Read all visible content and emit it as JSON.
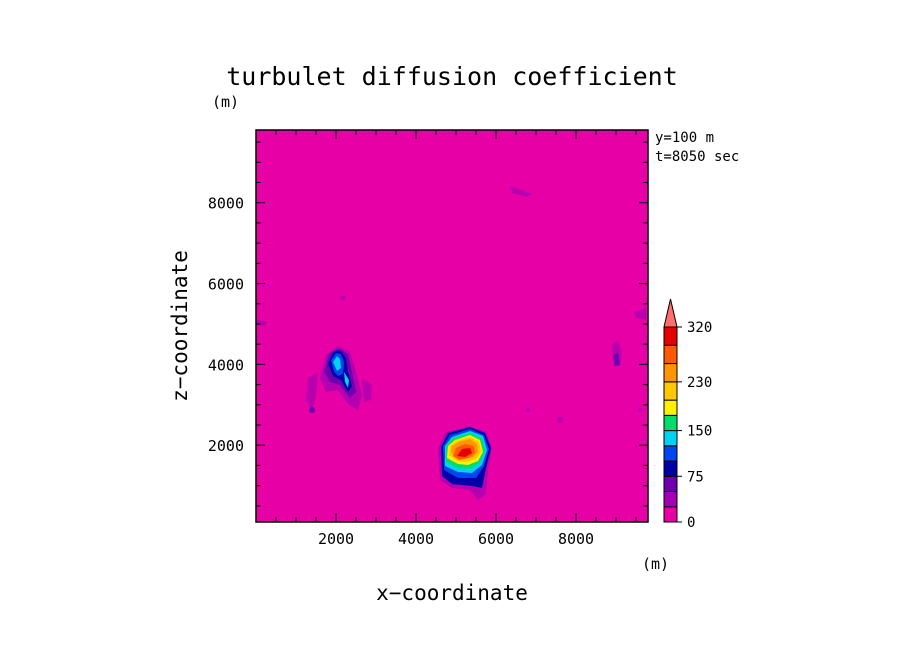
{
  "chart_data": {
    "type": "heatmap",
    "title": "turbulet diffusion coefficient",
    "xlabel": "x−coordinate",
    "ylabel": "z−coordinate",
    "x_unit": "(m)",
    "y_unit": "(m)",
    "annotations": [
      "y=100 m",
      "t=8050 sec"
    ],
    "xlim": [
      0,
      9800
    ],
    "ylim": [
      100,
      9800
    ],
    "xticks": [
      2000,
      4000,
      6000,
      8000
    ],
    "yticks": [
      2000,
      4000,
      6000,
      8000
    ],
    "colorbar": {
      "levels": [
        0,
        25,
        50,
        75,
        100,
        125,
        150,
        175,
        200,
        230,
        260,
        290,
        320
      ],
      "tick_labels": [
        "0",
        "75",
        "150",
        "230",
        "320"
      ],
      "tick_values": [
        0,
        75,
        150,
        230,
        320
      ],
      "colors": [
        "#e600a6",
        "#a300b4",
        "#6e00b0",
        "#0000a8",
        "#0046f0",
        "#00d2f0",
        "#00dc6e",
        "#fff000",
        "#ffc800",
        "#ff9600",
        "#ff5a00",
        "#e60000"
      ],
      "extend_color": "#ff6e6e"
    },
    "features": [
      {
        "name": "upper-left cell",
        "x": 2050,
        "z": 3950,
        "peak_range": [
          150,
          175
        ]
      },
      {
        "name": "lower-middle cell",
        "x": 5300,
        "z": 1750,
        "peak_range": [
          290,
          320
        ]
      }
    ]
  }
}
